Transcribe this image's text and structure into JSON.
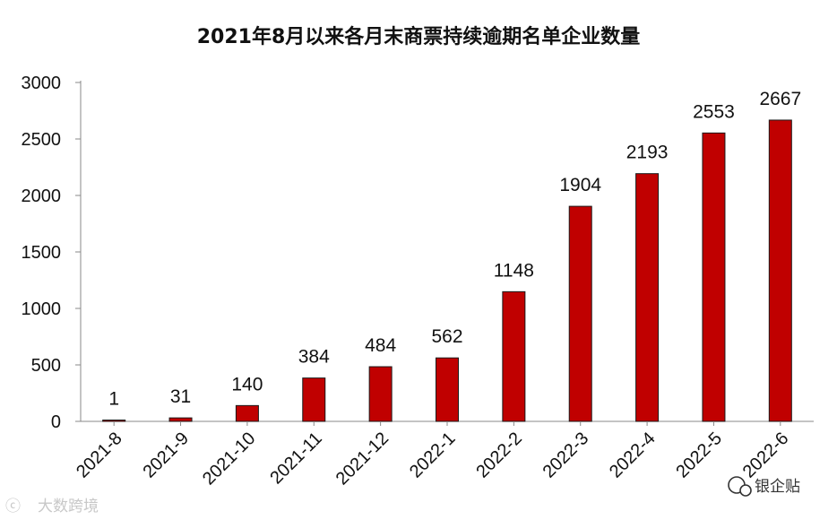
{
  "chart_data": {
    "type": "bar",
    "title": "2021年8月以来各月末商票持续逾期名单企业数量",
    "categories": [
      "2021-8",
      "2021-9",
      "2021-10",
      "2021-11",
      "2021-12",
      "2022-1",
      "2022-2",
      "2022-3",
      "2022-4",
      "2022-5",
      "2022-6"
    ],
    "values": [
      1,
      31,
      140,
      384,
      484,
      562,
      1148,
      1904,
      2193,
      2553,
      2667
    ],
    "ylim": [
      0,
      3000
    ],
    "yticks": [
      0,
      500,
      1000,
      1500,
      2000,
      2500,
      3000
    ],
    "grid": false,
    "data_labels": true,
    "bar_color": "#c00000"
  },
  "watermarks": {
    "bottom_left": "大数跨境",
    "bottom_right": "银企贴"
  }
}
